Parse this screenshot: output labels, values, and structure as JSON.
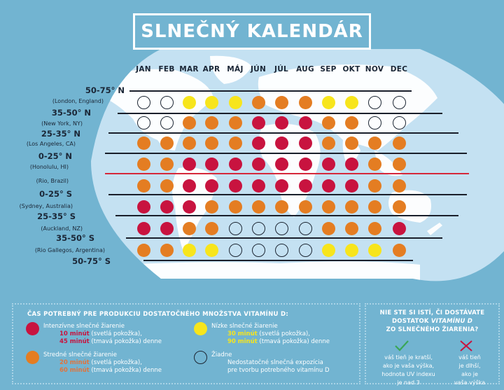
{
  "title": "SLNEČNÝ KALENDÁR",
  "months": [
    "JAN",
    "FEB",
    "MAR",
    "APR",
    "MÁJ",
    "JÚN",
    "JÚL",
    "AUG",
    "SEP",
    "OKT",
    "NOV",
    "DEC"
  ],
  "colors": {
    "intense": "#c8133f",
    "medium": "#e47d22",
    "low": "#f7e51c",
    "none": "transparent",
    "background": "#72b4d1",
    "ocean": "#c4e1f2",
    "land": "#ffffff",
    "equator": "#d6283b"
  },
  "latitude_labels": [
    "50-75° N",
    "35-50° N",
    "25-35° N",
    "0-25° N",
    "0-25° S",
    "25-35° S",
    "35-50° S",
    "50-75° S"
  ],
  "rows": [
    {
      "city": "(London, England)",
      "levels": [
        "none",
        "none",
        "low",
        "low",
        "low",
        "medium",
        "medium",
        "medium",
        "low",
        "low",
        "none",
        "none"
      ]
    },
    {
      "city": "(New York, NY)",
      "levels": [
        "none",
        "none",
        "medium",
        "medium",
        "medium",
        "intense",
        "intense",
        "intense",
        "medium",
        "medium",
        "none",
        "none"
      ]
    },
    {
      "city": "(Los Angeles, CA)",
      "levels": [
        "medium",
        "medium",
        "medium",
        "medium",
        "medium",
        "intense",
        "intense",
        "intense",
        "medium",
        "medium",
        "medium",
        "medium"
      ]
    },
    {
      "city": "(Honolulu, HI)",
      "levels": [
        "medium",
        "medium",
        "intense",
        "intense",
        "intense",
        "intense",
        "intense",
        "intense",
        "intense",
        "intense",
        "medium",
        "medium"
      ]
    },
    {
      "city": "(Rio, Brazil)",
      "levels": [
        "medium",
        "medium",
        "intense",
        "intense",
        "intense",
        "intense",
        "intense",
        "intense",
        "intense",
        "intense",
        "medium",
        "medium"
      ]
    },
    {
      "city": "(Sydney, Australia)",
      "levels": [
        "intense",
        "intense",
        "intense",
        "medium",
        "medium",
        "medium",
        "medium",
        "medium",
        "medium",
        "medium",
        "medium",
        "medium"
      ]
    },
    {
      "city": "(Auckland, NZ)",
      "levels": [
        "intense",
        "intense",
        "medium",
        "medium",
        "none",
        "none",
        "none",
        "none",
        "medium",
        "medium",
        "medium",
        "intense"
      ]
    },
    {
      "city": "(Rio Gallegos, Argentina)",
      "levels": [
        "medium",
        "medium",
        "low",
        "low",
        "none",
        "none",
        "none",
        "none",
        "low",
        "low",
        "low",
        "medium"
      ]
    }
  ],
  "legend": {
    "title": "ČAS POTREBNÝ PRE PRODUKCIU DOSTATOČNÉHO MNOŽSTVA VITAMÍNU D:",
    "items": [
      {
        "level": "intense",
        "label": "Intenzívne slnečné žiarenie",
        "line1_time": "10 minút",
        "line1_rest": " (svetlá pokožka),",
        "line2_time": "45 minút",
        "line2_rest": " (tmavá pokožka) denne",
        "time_color": "#c8133f"
      },
      {
        "level": "low",
        "label": "Nízke slnečné žiarenie",
        "line1_time": "30 minút",
        "line1_rest": " (svetlá pokožka),",
        "line2_time": "90 minút",
        "line2_rest": " (tmavá pokožka) denne",
        "time_color": "#f7e51c"
      },
      {
        "level": "medium",
        "label": "Stredné slnečné žiarenie",
        "line1_time": "20 minút",
        "line1_rest": " (svetlá pokožka),",
        "line2_time": "60 minút",
        "line2_rest": " (tmavá pokožka) denne",
        "time_color": "#e0743d"
      },
      {
        "level": "none",
        "label": "Žiadne",
        "line1_time": "",
        "line1_rest": "Nedostatočné slnečná expozícia",
        "line2_time": "",
        "line2_rest": "pre tvorbu potrebného vitamínu D",
        "time_color": "#ffffff"
      }
    ]
  },
  "tip": {
    "title_line1": "NIE STE SI ISTÍ, ČI DOSTÁVATE",
    "title_line2_a": "DOSTATOK ",
    "title_line2_b": "VITAMÍNU D",
    "title_line3": "ZO SLNEČNÉHO ŽIARENIA?",
    "yes_icon": "check-icon",
    "yes_lines": [
      "váš tieň je kratší,",
      "ako je vaša výška,",
      "hodnota UV indexu",
      "je nad 3"
    ],
    "no_icon": "cross-icon",
    "no_lines": [
      "váš tieň",
      "je dlhší,",
      "ako je",
      "vaša výška"
    ]
  }
}
